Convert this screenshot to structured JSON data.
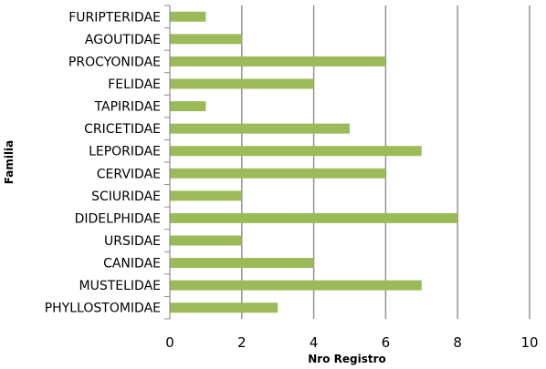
{
  "chart_data": {
    "type": "bar",
    "orientation": "horizontal",
    "title": "",
    "xlabel": "Nro Registro",
    "ylabel": "Familia",
    "xlim": [
      0,
      10
    ],
    "xticks": [
      0,
      2,
      4,
      6,
      8,
      10
    ],
    "grid": "vertical",
    "legend": "none",
    "bar_color": "#9bbb59",
    "categories": [
      "FURIPTERIDAE",
      "AGOUTIDAE",
      "PROCYONIDAE",
      "FELIDAE",
      "TAPIRIDAE",
      "CRICETIDAE",
      "LEPORIDAE",
      "CERVIDAE",
      "SCIURIDAE",
      "DIDELPHIDAE",
      "URSIDAE",
      "CANIDAE",
      "MUSTELIDAE",
      "PHYLLOSTOMIDAE"
    ],
    "values": [
      1,
      2,
      6,
      4,
      1,
      5,
      7,
      6,
      2,
      8,
      2,
      4,
      7,
      3
    ]
  }
}
